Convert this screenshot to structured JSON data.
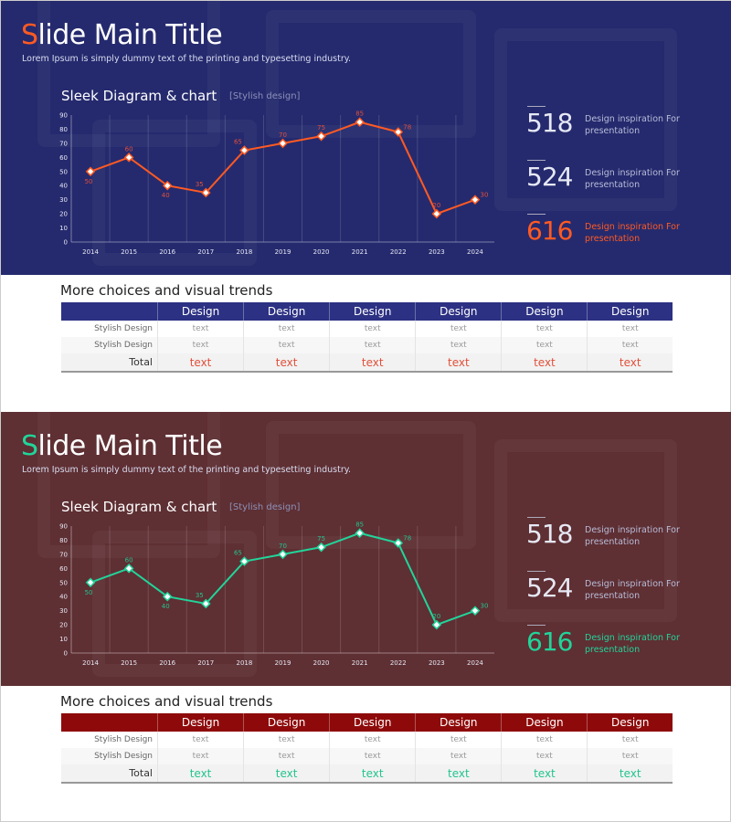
{
  "slides": [
    {
      "theme": {
        "bg": "#252a6e",
        "accent": "#ff5a22",
        "table_header": "#2c3183",
        "label_color": "#e0503a"
      },
      "title_first": "S",
      "title_rest": "lide Main Title",
      "subtitle": "Lorem Ipsum is simply dummy text of the printing and typesetting industry.",
      "chart_title": "Sleek Diagram & chart",
      "chart_tag": "[Stylish design]",
      "stats": [
        {
          "number": "518",
          "desc": "Design inspiration For presentation"
        },
        {
          "number": "524",
          "desc": "Design inspiration For presentation"
        },
        {
          "number": "616",
          "desc": "Design inspiration For presentation",
          "highlight": true
        }
      ],
      "table": {
        "title": "More choices and visual trends",
        "headers": [
          "",
          "Design",
          "Design",
          "Design",
          "Design",
          "Design",
          "Design"
        ],
        "rows": [
          [
            "Stylish Design",
            "text",
            "text",
            "text",
            "text",
            "text",
            "text"
          ],
          [
            "Stylish Design",
            "text",
            "text",
            "text",
            "text",
            "text",
            "text"
          ],
          [
            "Total",
            "text",
            "text",
            "text",
            "text",
            "text",
            "text"
          ]
        ]
      }
    },
    {
      "theme": {
        "bg": "#5e2f33",
        "accent": "#22d49a",
        "table_header": "#8e0a0a",
        "label_color": "#22c48e"
      },
      "title_first": "S",
      "title_rest": "lide Main Title",
      "subtitle": "Lorem Ipsum is simply dummy text of the printing and typesetting industry.",
      "chart_title": "Sleek Diagram & chart",
      "chart_tag": "[Stylish design]",
      "stats": [
        {
          "number": "518",
          "desc": "Design inspiration For presentation"
        },
        {
          "number": "524",
          "desc": "Design inspiration For presentation"
        },
        {
          "number": "616",
          "desc": "Design inspiration For presentation",
          "highlight": true
        }
      ],
      "table": {
        "title": "More choices and visual trends",
        "headers": [
          "",
          "Design",
          "Design",
          "Design",
          "Design",
          "Design",
          "Design"
        ],
        "rows": [
          [
            "Stylish Design",
            "text",
            "text",
            "text",
            "text",
            "text",
            "text"
          ],
          [
            "Stylish Design",
            "text",
            "text",
            "text",
            "text",
            "text",
            "text"
          ],
          [
            "Total",
            "text",
            "text",
            "text",
            "text",
            "text",
            "text"
          ]
        ]
      }
    }
  ],
  "chart_data": {
    "type": "line",
    "categories": [
      "2014",
      "2015",
      "2016",
      "2017",
      "2018",
      "2019",
      "2020",
      "2021",
      "2022",
      "2023",
      "2024"
    ],
    "values": [
      50,
      60,
      40,
      35,
      65,
      70,
      75,
      85,
      78,
      20,
      30
    ],
    "yticks": [
      0,
      10,
      20,
      30,
      40,
      50,
      60,
      70,
      80,
      90
    ],
    "ylim": [
      0,
      90
    ],
    "grid": "vertical",
    "data_labels": true
  }
}
